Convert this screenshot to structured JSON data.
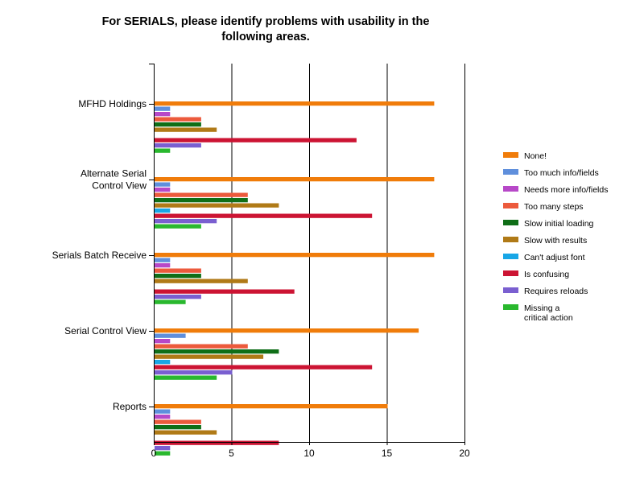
{
  "chart_data": {
    "type": "bar",
    "orientation": "horizontal",
    "title": "For SERIALS, please identify problems with usability in the\nfollowing areas.",
    "xlabel": "",
    "ylabel": "",
    "xlim": [
      0,
      20
    ],
    "x_ticks": [
      0,
      5,
      10,
      15,
      20
    ],
    "grid": "vertical",
    "legend_position": "right",
    "categories": [
      "MFHD Holdings",
      "Alternate Serial\nControl View",
      "Serials Batch Receive",
      "Serial Control View",
      "Reports"
    ],
    "series": [
      {
        "name": "None!",
        "color": "#f07c0a",
        "values": [
          18,
          18,
          18,
          17,
          15
        ]
      },
      {
        "name": "Too much info/fields",
        "color": "#5f8fdc",
        "values": [
          1,
          1,
          1,
          2,
          1
        ]
      },
      {
        "name": "Needs more info/fields",
        "color": "#b748c8",
        "values": [
          1,
          1,
          1,
          1,
          1
        ]
      },
      {
        "name": "Too many steps",
        "color": "#ec5a3c",
        "values": [
          3,
          6,
          3,
          6,
          3
        ]
      },
      {
        "name": "Slow initial loading",
        "color": "#0f6e17",
        "values": [
          3,
          6,
          3,
          8,
          3
        ]
      },
      {
        "name": "Slow with results",
        "color": "#b07a17",
        "values": [
          4,
          8,
          6,
          7,
          4
        ]
      },
      {
        "name": "Can't adjust font",
        "color": "#18a6e6",
        "values": [
          0,
          1,
          0,
          1,
          0
        ]
      },
      {
        "name": "Is confusing",
        "color": "#cc1433",
        "values": [
          13,
          14,
          9,
          14,
          8
        ]
      },
      {
        "name": "Requires reloads",
        "color": "#7a5fd0",
        "values": [
          3,
          4,
          3,
          5,
          1
        ]
      },
      {
        "name": "Missing a\ncritical action",
        "color": "#29b82e",
        "values": [
          1,
          3,
          2,
          4,
          1
        ]
      }
    ]
  }
}
